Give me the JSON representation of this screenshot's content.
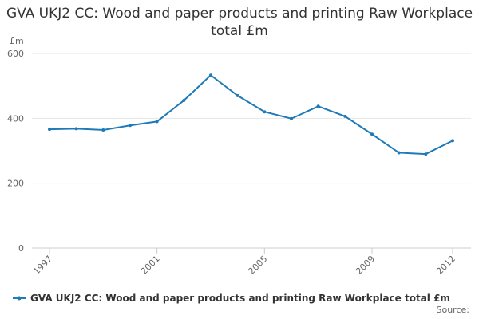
{
  "chart_data": {
    "type": "line",
    "title": "GVA UKJ2 CC: Wood and paper products and printing Raw Workplace total £m",
    "y_unit": "£m",
    "source": "Source:",
    "x": [
      1997,
      1998,
      1999,
      2000,
      2001,
      2002,
      2003,
      2004,
      2005,
      2006,
      2007,
      2008,
      2009,
      2010,
      2011,
      2012
    ],
    "series": [
      {
        "name": "GVA UKJ2 CC: Wood and paper products and printing Raw Workplace total £m",
        "color": "#1f7ab8",
        "values": [
          366,
          368,
          364,
          378,
          390,
          455,
          533,
          470,
          420,
          399,
          437,
          406,
          351,
          294,
          290,
          331
        ]
      }
    ],
    "xlim": [
      1997,
      2012
    ],
    "xticks": [
      1997,
      2001,
      2005,
      2009,
      2012
    ],
    "ylim": [
      0,
      600
    ],
    "yticks": [
      0,
      200,
      400,
      600
    ],
    "grid": true
  }
}
